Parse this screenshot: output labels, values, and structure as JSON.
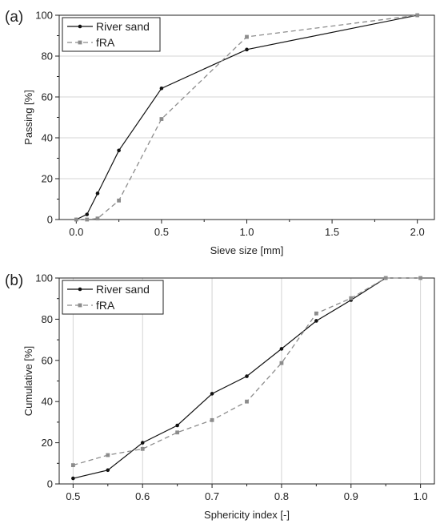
{
  "chart_data": [
    {
      "type": "line",
      "panel_label": "(a)",
      "xlabel": "Sieve size [mm]",
      "ylabel": "Passing [%]",
      "xlim": [
        -0.1,
        2.1
      ],
      "ylim": [
        0,
        100
      ],
      "xticks": [
        0.0,
        0.5,
        1.0,
        1.5,
        2.0
      ],
      "xtick_labels": [
        "0.0",
        "0.5",
        "1.0",
        "1.5",
        "2.0"
      ],
      "yticks": [
        0,
        20,
        40,
        60,
        80,
        100
      ],
      "ytick_labels": [
        "0",
        "20",
        "40",
        "60",
        "80",
        "100"
      ],
      "grid": "horizontal",
      "legend": "top-left",
      "series": [
        {
          "name": "River sand",
          "color": "#111111",
          "line": "solid",
          "marker": "circle",
          "x": [
            0.0,
            0.063,
            0.125,
            0.25,
            0.5,
            1.0,
            2.0
          ],
          "y": [
            0,
            2.5,
            12.8,
            33.8,
            64.2,
            83.2,
            100
          ]
        },
        {
          "name": "fRA",
          "color": "#8c8c8c",
          "line": "dashed",
          "marker": "square",
          "x": [
            0.0,
            0.063,
            0.125,
            0.25,
            0.5,
            1.0,
            2.0
          ],
          "y": [
            0,
            0,
            0.5,
            9.3,
            49.2,
            89.4,
            100
          ]
        }
      ]
    },
    {
      "type": "line",
      "panel_label": "(b)",
      "xlabel": "Sphericity index [-]",
      "ylabel": "Cumulative [%]",
      "xlim": [
        0.48,
        1.02
      ],
      "ylim": [
        0,
        100
      ],
      "xticks": [
        0.5,
        0.6,
        0.7,
        0.8,
        0.9,
        1.0
      ],
      "xtick_labels": [
        "0.5",
        "0.6",
        "0.7",
        "0.8",
        "0.9",
        "1.0"
      ],
      "yticks": [
        0,
        20,
        40,
        60,
        80,
        100
      ],
      "ytick_labels": [
        "0",
        "20",
        "40",
        "60",
        "80",
        "100"
      ],
      "grid": "vertical",
      "legend": "top-left",
      "series": [
        {
          "name": "River sand",
          "color": "#111111",
          "line": "solid",
          "marker": "circle",
          "x": [
            0.5,
            0.55,
            0.6,
            0.65,
            0.7,
            0.75,
            0.8,
            0.85,
            0.9,
            0.95
          ],
          "y": [
            2.7,
            6.7,
            20.0,
            28.4,
            43.8,
            52.3,
            65.6,
            79.2,
            89.3,
            100
          ]
        },
        {
          "name": "fRA",
          "color": "#8c8c8c",
          "line": "dashed",
          "marker": "square",
          "x": [
            0.5,
            0.55,
            0.6,
            0.65,
            0.7,
            0.75,
            0.8,
            0.85,
            0.9,
            0.95,
            1.0
          ],
          "y": [
            9.1,
            14.0,
            17.0,
            25.0,
            31.0,
            40.0,
            58.7,
            82.8,
            90.2,
            100,
            100
          ]
        }
      ]
    }
  ]
}
